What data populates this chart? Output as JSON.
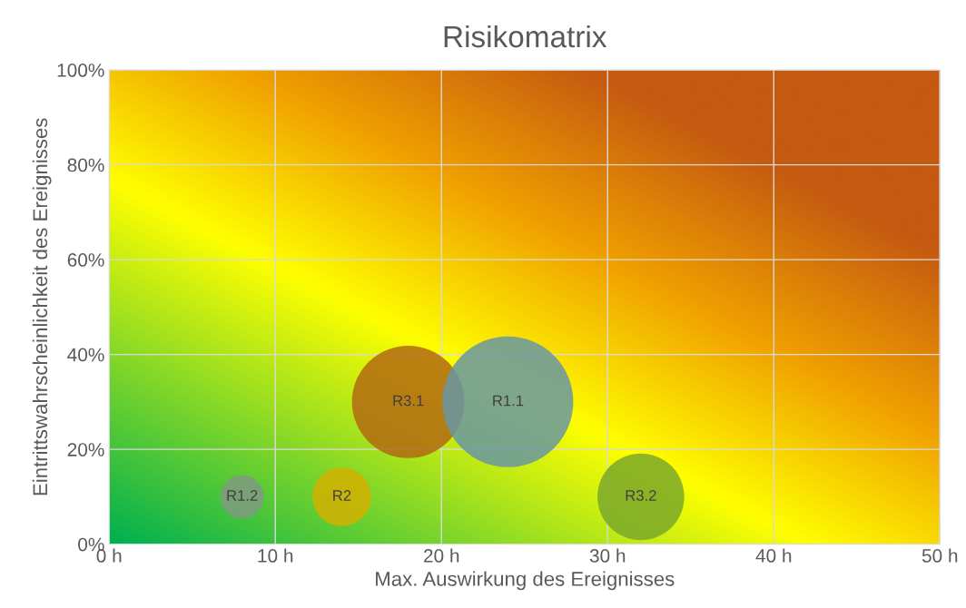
{
  "chart_data": {
    "type": "bubble",
    "title": "Risikomatrix",
    "xlabel": "Max. Auswirkung des Ereignisses",
    "ylabel": "Eintrittswahrscheinlichkeit des Ereignisses",
    "xlim": [
      0,
      50
    ],
    "xticks": [
      {
        "value": 0,
        "label": "0 h"
      },
      {
        "value": 10,
        "label": "10 h"
      },
      {
        "value": 20,
        "label": "20 h"
      },
      {
        "value": 30,
        "label": "30 h"
      },
      {
        "value": 40,
        "label": "40 h"
      },
      {
        "value": 50,
        "label": "50 h"
      }
    ],
    "ylim": [
      0,
      100
    ],
    "yticks": [
      {
        "value": 0,
        "label": "0%"
      },
      {
        "value": 20,
        "label": "20%"
      },
      {
        "value": 40,
        "label": "40%"
      },
      {
        "value": 60,
        "label": "60%"
      },
      {
        "value": 80,
        "label": "80%"
      },
      {
        "value": 100,
        "label": "100%"
      }
    ],
    "grid": true,
    "legend": false,
    "series": [
      {
        "name": "R1.2",
        "color": "#7f9a80",
        "x": [
          8
        ],
        "values": [
          10
        ],
        "sizes": [
          0.11
        ]
      },
      {
        "name": "R2",
        "color": "#d2b000",
        "x": [
          14
        ],
        "values": [
          10
        ],
        "sizes": [
          0.2
        ]
      },
      {
        "name": "R3.1",
        "color": "#b06a12",
        "x": [
          18
        ],
        "values": [
          30
        ],
        "sizes": [
          0.74
        ]
      },
      {
        "name": "R1.1",
        "color": "#6896a2",
        "x": [
          24
        ],
        "values": [
          30
        ],
        "sizes": [
          1
        ]
      },
      {
        "name": "R3.2",
        "color": "#7aa82a",
        "x": [
          32
        ],
        "values": [
          10
        ],
        "sizes": [
          0.44
        ]
      }
    ]
  }
}
